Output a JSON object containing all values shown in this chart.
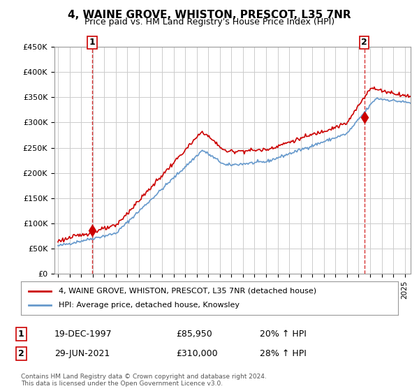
{
  "title": "4, WAINE GROVE, WHISTON, PRESCOT, L35 7NR",
  "subtitle": "Price paid vs. HM Land Registry's House Price Index (HPI)",
  "ylabel_ticks": [
    "£0",
    "£50K",
    "£100K",
    "£150K",
    "£200K",
    "£250K",
    "£300K",
    "£350K",
    "£400K",
    "£450K"
  ],
  "ylim": [
    0,
    450000
  ],
  "xlim_start": 1995.0,
  "xlim_end": 2025.5,
  "sale1_x": 1997.97,
  "sale1_y": 85950,
  "sale1_label": "1",
  "sale2_x": 2021.49,
  "sale2_y": 310000,
  "sale2_label": "2",
  "sale1_date": "19-DEC-1997",
  "sale1_price": "£85,950",
  "sale1_hpi": "20% ↑ HPI",
  "sale2_date": "29-JUN-2021",
  "sale2_price": "£310,000",
  "sale2_hpi": "28% ↑ HPI",
  "legend_line1": "4, WAINE GROVE, WHISTON, PRESCOT, L35 7NR (detached house)",
  "legend_line2": "HPI: Average price, detached house, Knowsley",
  "footer": "Contains HM Land Registry data © Crown copyright and database right 2024.\nThis data is licensed under the Open Government Licence v3.0.",
  "line_color_red": "#cc0000",
  "line_color_blue": "#6699cc",
  "dashed_color": "#cc0000",
  "marker_color": "#cc0000",
  "grid_color": "#cccccc",
  "bg_color": "#ffffff",
  "plot_bg_color": "#ffffff"
}
